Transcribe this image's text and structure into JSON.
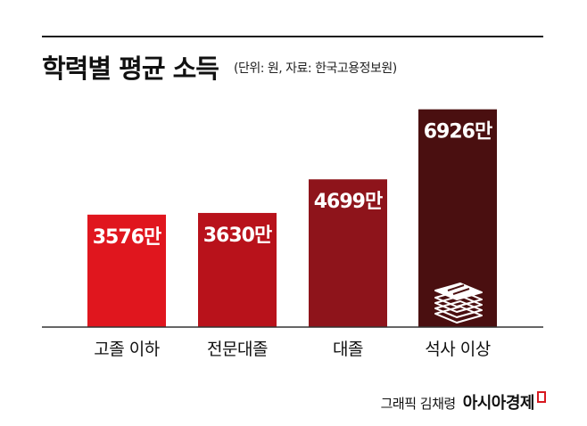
{
  "header": {
    "title": "학력별 평균 소득",
    "subtitle": "(단위: 원, 자료: 한국고용정보원)"
  },
  "chart_data": {
    "type": "bar",
    "title": "학력별 평균 소득",
    "subtitle": "(단위: 원, 자료: 한국고용정보원)",
    "categories": [
      "고졸 이하",
      "전문대졸",
      "대졸",
      "석사 이상"
    ],
    "values": [
      3576,
      3630,
      4699,
      6926
    ],
    "value_labels": [
      "3576만",
      "3630만",
      "4699만",
      "6926만"
    ],
    "xlabel": "",
    "ylabel": "",
    "ylim": [
      0,
      7200
    ],
    "grid": false,
    "legend": "none",
    "colors": [
      "#e0161e",
      "#b8121b",
      "#8e141b",
      "#4a0f10"
    ],
    "annotation_icon": "money-stack-icon"
  },
  "footer": {
    "credit": "그래픽 김채령",
    "brand": "아시아경제"
  }
}
